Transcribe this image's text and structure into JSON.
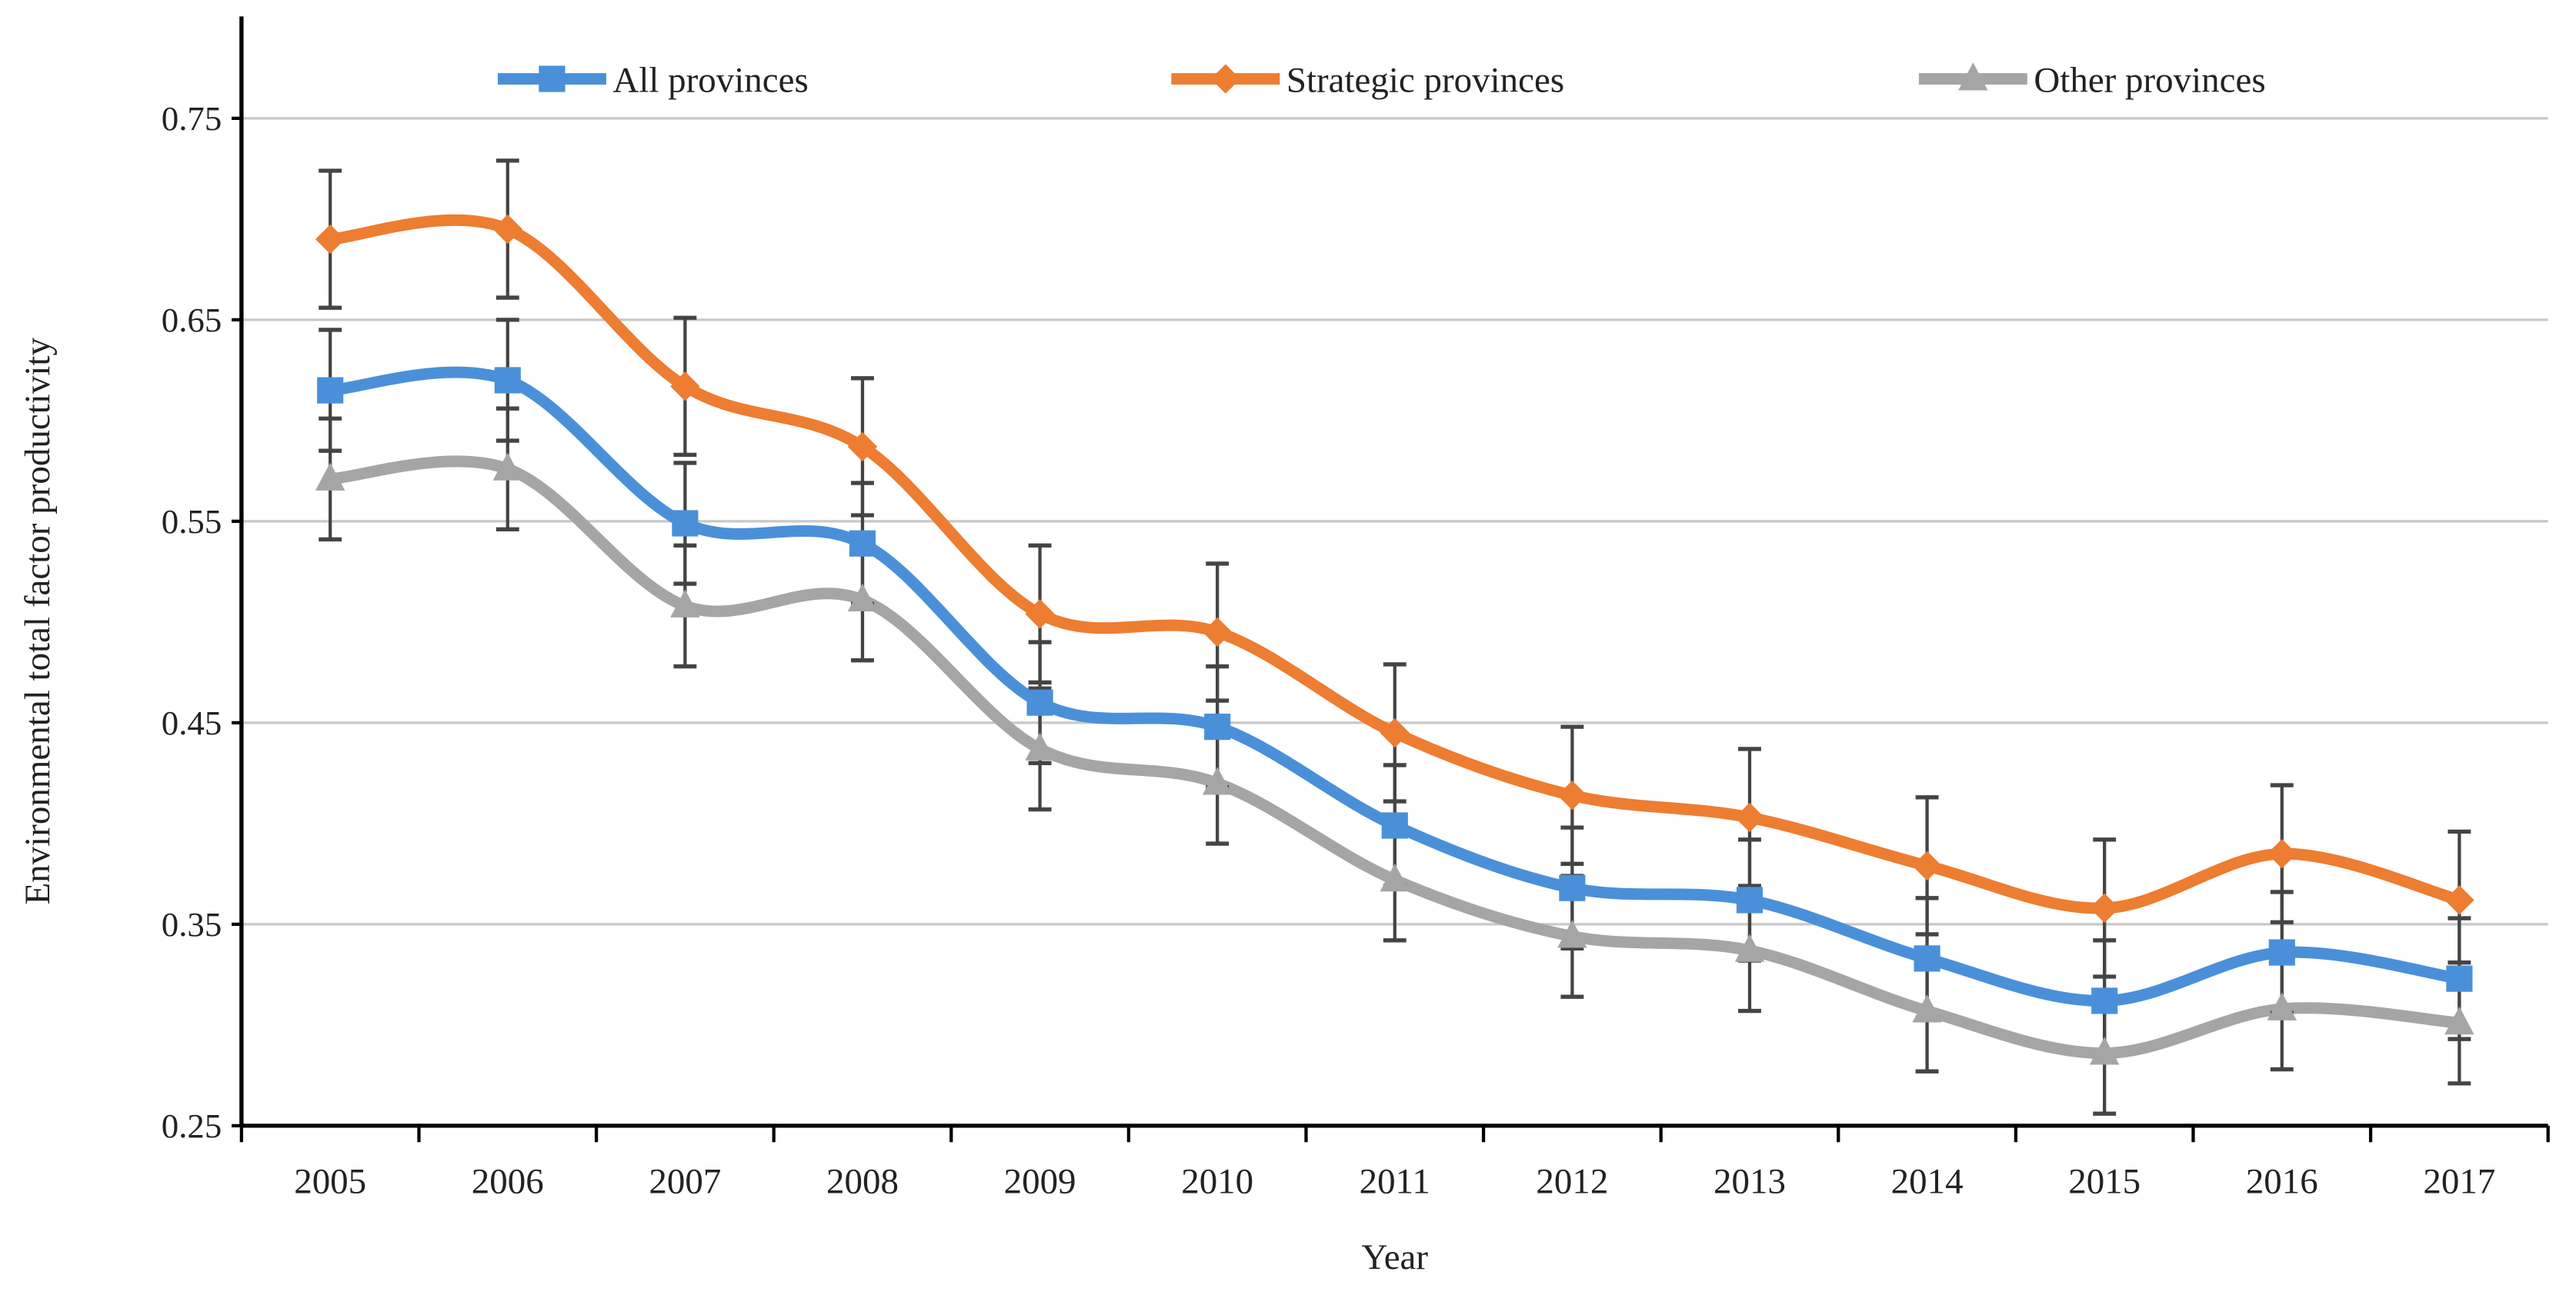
{
  "chart_data": {
    "type": "line",
    "title": "",
    "xlabel": "Year",
    "ylabel": "Environmental  total factor productivity",
    "ylim": [
      0.25,
      0.75
    ],
    "yticks": [
      "0.25",
      "0.35",
      "0.45",
      "0.55",
      "0.65",
      "0.75"
    ],
    "ytick_values": [
      0.25,
      0.35,
      0.45,
      0.55,
      0.65,
      0.75
    ],
    "grid": "horizontal",
    "legend_position": "top",
    "categories": [
      "2005",
      "2006",
      "2007",
      "2008",
      "2009",
      "2010",
      "2011",
      "2012",
      "2013",
      "2014",
      "2015",
      "2016",
      "2017"
    ],
    "series": [
      {
        "name": "All provinces",
        "color": "#4a90d9",
        "marker": "square",
        "values": [
          0.615,
          0.62,
          0.549,
          0.539,
          0.46,
          0.448,
          0.399,
          0.368,
          0.362,
          0.333,
          0.312,
          0.336,
          0.323
        ],
        "error": 0.03
      },
      {
        "name": "Strategic provinces",
        "color": "#ed7d31",
        "marker": "diamond",
        "values": [
          0.69,
          0.695,
          0.617,
          0.587,
          0.504,
          0.495,
          0.445,
          0.414,
          0.403,
          0.379,
          0.358,
          0.385,
          0.362
        ],
        "error": 0.034
      },
      {
        "name": "Other provinces",
        "color": "#a5a5a5",
        "marker": "triangle",
        "values": [
          0.571,
          0.576,
          0.508,
          0.511,
          0.437,
          0.42,
          0.372,
          0.344,
          0.337,
          0.307,
          0.286,
          0.308,
          0.301
        ],
        "error": 0.03
      }
    ]
  }
}
